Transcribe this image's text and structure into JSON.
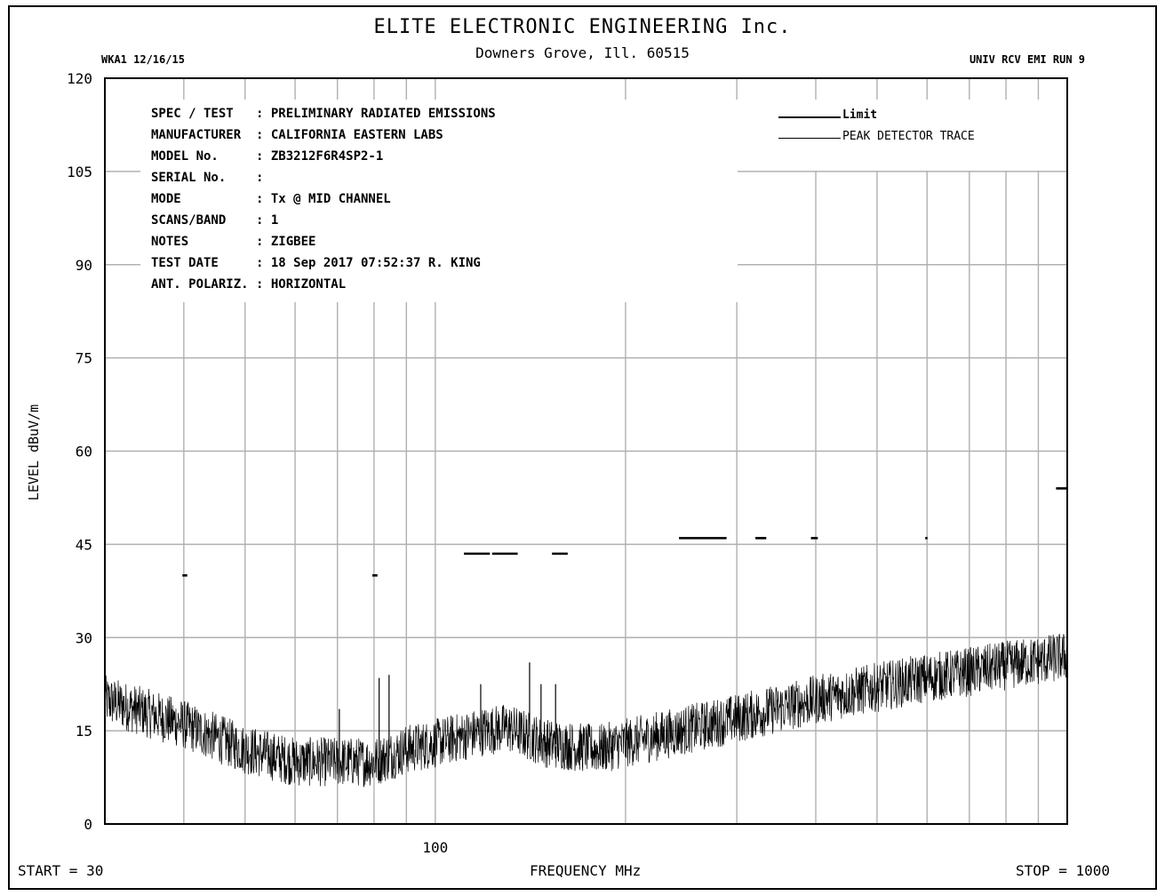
{
  "header": {
    "title": "ELITE ELECTRONIC ENGINEERING Inc.",
    "subtitle": "Downers Grove, Ill. 60515",
    "left_tag": "WKA1  12/16/15",
    "right_tag": "UNIV RCV EMI  RUN 9"
  },
  "info": [
    {
      "key": "SPEC / TEST",
      "value": ": PRELIMINARY RADIATED EMISSIONS"
    },
    {
      "key": "MANUFACTURER",
      "value": ": CALIFORNIA EASTERN LABS"
    },
    {
      "key": "MODEL No.",
      "value": ": ZB3212F6R4SP2-1"
    },
    {
      "key": "SERIAL No.",
      "value": ":"
    },
    {
      "key": "MODE",
      "value": ": Tx @ MID CHANNEL"
    },
    {
      "key": "SCANS/BAND",
      "value": ": 1"
    },
    {
      "key": "NOTES",
      "value": ": ZIGBEE"
    },
    {
      "key": "TEST DATE",
      "value": ": 18 Sep 2017 07:52:37  R. KING"
    },
    {
      "key": "ANT. POLARIZ.",
      "value": ": HORIZONTAL"
    }
  ],
  "footer": {
    "start": "START = 30",
    "xlabel": "FREQUENCY  MHz",
    "stop": "STOP = 1000"
  },
  "chart_data": {
    "type": "line",
    "xscale": "log",
    "xlim": [
      30,
      1000
    ],
    "ylim": [
      0,
      120
    ],
    "ylabel": "LEVEL dBuV/m",
    "xlabel": "FREQUENCY  MHz",
    "x_tick_labels": [
      {
        "x": 100,
        "label": "100"
      }
    ],
    "y_ticks": [
      0,
      15,
      30,
      45,
      60,
      75,
      90,
      105,
      120
    ],
    "x_gridlines": [
      40,
      50,
      60,
      70,
      80,
      90,
      100,
      200,
      300,
      400,
      500,
      600,
      700,
      800,
      900
    ],
    "grid": true,
    "legend": {
      "position": "top-right",
      "entries": [
        "Limit",
        "PEAK  DETECTOR TRACE"
      ]
    },
    "series": [
      {
        "name": "Limit",
        "style": "thick",
        "segments": [
          {
            "x": [
              39.8,
              40.5
            ],
            "y": 40.0
          },
          {
            "x": [
              79.5,
              81.0
            ],
            "y": 40.0
          },
          {
            "x": [
              111,
              122
            ],
            "y": 43.5
          },
          {
            "x": [
              123,
              135
            ],
            "y": 43.5
          },
          {
            "x": [
              153,
              162
            ],
            "y": 43.5
          },
          {
            "x": [
              243,
              289
            ],
            "y": 46.0
          },
          {
            "x": [
              321,
              334
            ],
            "y": 46.0
          },
          {
            "x": [
              393,
              403
            ],
            "y": 46.0
          },
          {
            "x": [
              596,
              601
            ],
            "y": 46.0
          },
          {
            "x": [
              960,
              1000
            ],
            "y": 54.0
          }
        ]
      },
      {
        "name": "PEAK  DETECTOR TRACE",
        "style": "thin",
        "envelope": [
          {
            "x": 30,
            "y": 20
          },
          {
            "x": 40,
            "y": 16
          },
          {
            "x": 50,
            "y": 12
          },
          {
            "x": 60,
            "y": 10
          },
          {
            "x": 70,
            "y": 10
          },
          {
            "x": 80,
            "y": 10
          },
          {
            "x": 90,
            "y": 12
          },
          {
            "x": 100,
            "y": 13
          },
          {
            "x": 120,
            "y": 15
          },
          {
            "x": 130,
            "y": 15.5
          },
          {
            "x": 150,
            "y": 13
          },
          {
            "x": 180,
            "y": 12
          },
          {
            "x": 200,
            "y": 13
          },
          {
            "x": 300,
            "y": 17
          },
          {
            "x": 400,
            "y": 20
          },
          {
            "x": 500,
            "y": 22
          },
          {
            "x": 600,
            "y": 23.5
          },
          {
            "x": 700,
            "y": 24.5
          },
          {
            "x": 800,
            "y": 25.5
          },
          {
            "x": 1000,
            "y": 27
          }
        ],
        "noise_amplitude": 4,
        "spikes": [
          {
            "x": 70.5,
            "y": 18.5
          },
          {
            "x": 81.5,
            "y": 23.5
          },
          {
            "x": 84.5,
            "y": 24.0
          },
          {
            "x": 118,
            "y": 22.5
          },
          {
            "x": 141,
            "y": 26.0
          },
          {
            "x": 147,
            "y": 22.5
          },
          {
            "x": 155,
            "y": 22.5
          }
        ]
      }
    ]
  }
}
